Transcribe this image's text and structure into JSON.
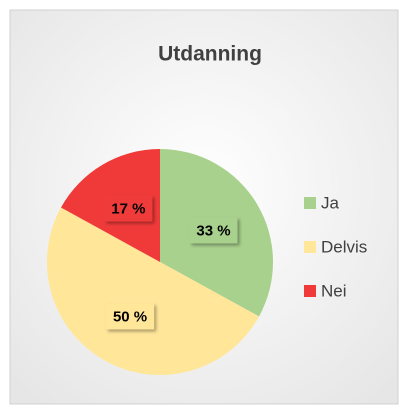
{
  "chart_data": {
    "type": "pie",
    "title": "Utdanning",
    "categories": [
      "Ja",
      "Delvis",
      "Nei"
    ],
    "values": [
      33,
      50,
      17
    ],
    "value_labels": [
      "33 %",
      "50 %",
      "17 %"
    ],
    "colors": [
      "#a9d18e",
      "#ffe699",
      "#f03a3a"
    ],
    "legend": "right"
  }
}
